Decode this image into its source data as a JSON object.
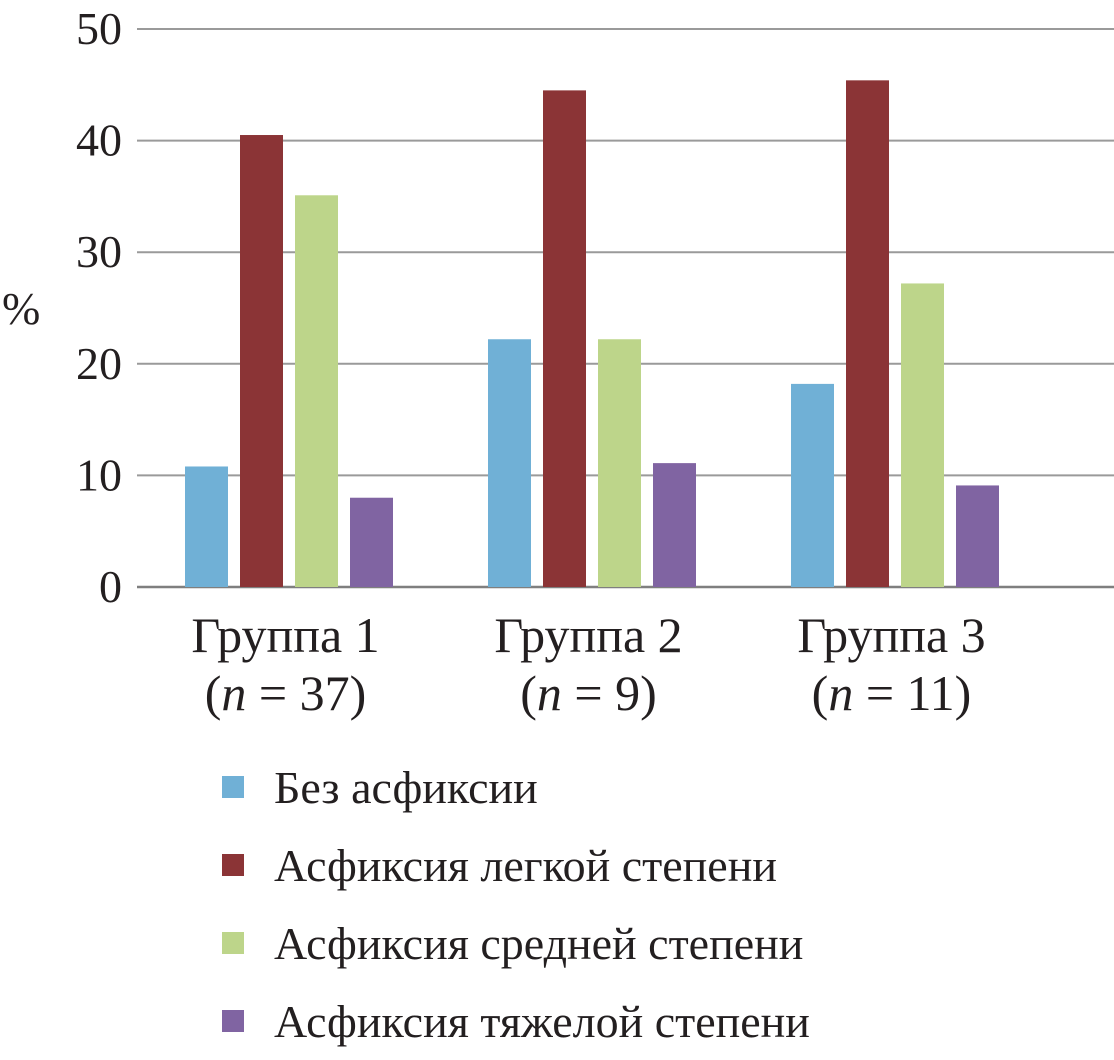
{
  "chart_data": {
    "type": "bar",
    "ylabel": "%",
    "ylim": [
      0,
      50
    ],
    "yticks": [
      0,
      10,
      20,
      30,
      40,
      50
    ],
    "grid": true,
    "legend_position": "bottom",
    "categories": [
      {
        "label": "Группа 1",
        "n_prefix": "(",
        "n_symbol": "n",
        "n_suffix": " = 37)"
      },
      {
        "label": "Группа 2",
        "n_prefix": "(",
        "n_symbol": "n",
        "n_suffix": " = 9)"
      },
      {
        "label": "Группа 3",
        "n_prefix": "(",
        "n_symbol": "n",
        "n_suffix": " = 11)"
      }
    ],
    "series": [
      {
        "name": "Без асфиксии",
        "color": "#70b0d6",
        "values": [
          10.8,
          22.2,
          18.2
        ]
      },
      {
        "name": "Асфиксия легкой степени",
        "color": "#8b3436",
        "values": [
          40.5,
          44.5,
          45.4
        ]
      },
      {
        "name": "Асфиксия средней степени",
        "color": "#bdd58a",
        "values": [
          35.1,
          22.2,
          27.2
        ]
      },
      {
        "name": "Асфиксия тяжелой степени",
        "color": "#8064a2",
        "values": [
          8.0,
          11.1,
          9.1
        ]
      }
    ]
  }
}
